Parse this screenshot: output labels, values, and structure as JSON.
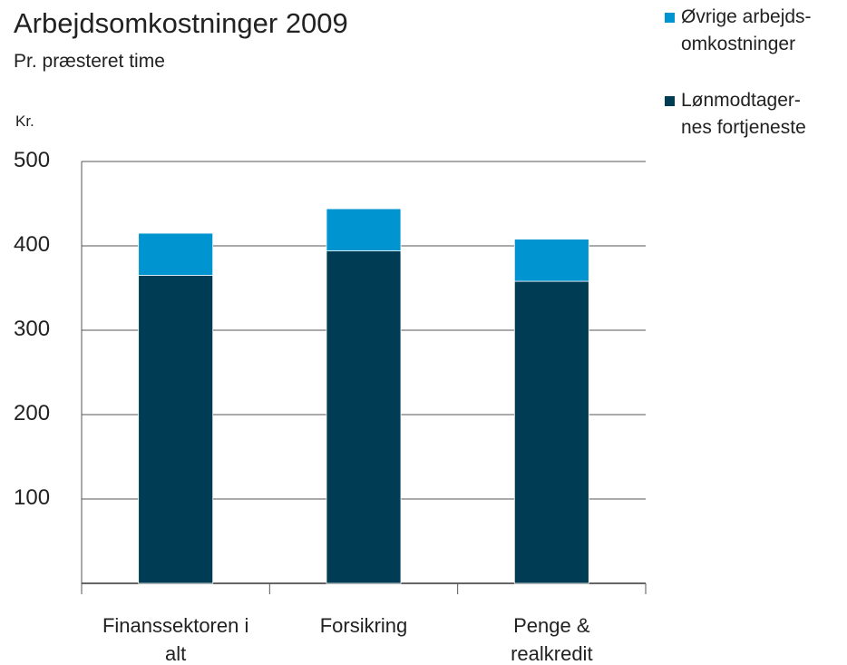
{
  "chart_data": {
    "type": "stacked_bar",
    "title": "Arbejdsomkostninger 2009",
    "subtitle": "Pr. præsteret time",
    "y_label": "Kr.",
    "categories": [
      "Finanssektoren i\nalt",
      "Forsikring",
      "Penge &\nrealkredit"
    ],
    "series": [
      {
        "name": "Øvrige arbejds-\nomkostninger",
        "color": "#0095d0",
        "values": [
          50,
          50,
          50
        ]
      },
      {
        "name": "Lønmodtager-\nnes fortjeneste",
        "color": "#003d55",
        "values": [
          365,
          394,
          358
        ]
      }
    ],
    "ylim": [
      0,
      500
    ],
    "yticks": [
      100,
      200,
      300,
      400,
      500
    ],
    "grid": true
  }
}
